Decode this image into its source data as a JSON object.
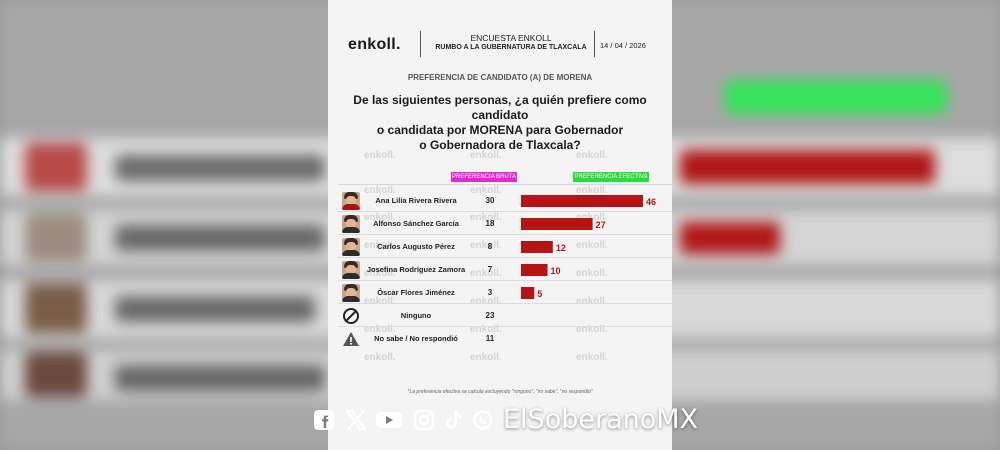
{
  "header": {
    "logo": "enkoll.",
    "survey_title": "ENCUESTA ENKOLL",
    "survey_subtitle": "RUMBO A LA GUBERNATURA DE TLAXCALA",
    "date": "14 / 04 / 2026"
  },
  "subtitle": "PREFERENCIA DE CANDIDATO (A) DE MORENA",
  "question_lines": [
    "De las siguientes personas, ¿a quién prefiere como candidato",
    "o candidata por MORENA para Gobernador",
    "o Gobernadora de Tlaxcala?"
  ],
  "watermark_text": "enkoll.",
  "legend": {
    "bruta": "PREFERENCIA BRUTA",
    "efectiva": "PREFERENCIA EFECTIVA"
  },
  "chart_data": {
    "type": "bar",
    "categories": [
      "Ana Lilia Rivera Rivera",
      "Alfonso Sánchez García",
      "Carlos Augusto Pérez",
      "Josefina Rodríguez Zamora",
      "Óscar Flores Jiménez",
      "Ninguno",
      "No sabe / No respondió"
    ],
    "series": [
      {
        "name": "PREFERENCIA BRUTA",
        "values": [
          30,
          18,
          8,
          7,
          3,
          23,
          11
        ]
      },
      {
        "name": "PREFERENCIA EFECTIVA",
        "values": [
          46,
          27,
          12,
          10,
          5,
          null,
          null
        ]
      }
    ],
    "bar_color": "#b51414",
    "bruta_color": "#e02bd1",
    "efectiva_color": "#2bdb3c",
    "ylim": [
      0,
      46
    ],
    "orientation": "horizontal",
    "row_icons": [
      "avatar",
      "avatar",
      "avatar",
      "avatar",
      "avatar",
      "no-entry-icon",
      "warning-icon"
    ]
  },
  "footnote": "*La preferencia efectiva se calcula excluyendo \"ninguno\", \"no sabe\", \"no respondió\"",
  "social": {
    "icons": [
      "facebook-icon",
      "x-icon",
      "youtube-icon",
      "instagram-icon",
      "tiktok-icon",
      "whatsapp-icon"
    ],
    "handle": "ElSoberanoMX"
  }
}
